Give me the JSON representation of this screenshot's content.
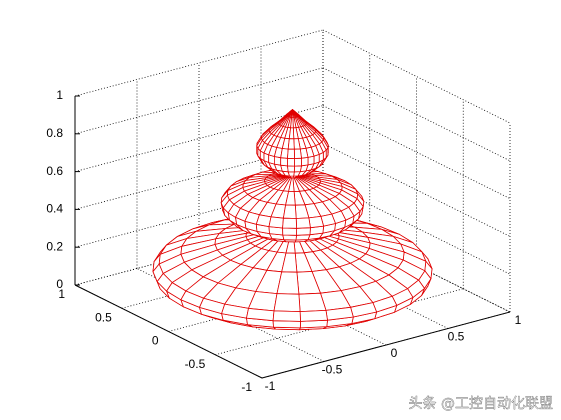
{
  "chart_data": {
    "type": "mesh",
    "color": "#e00000",
    "xlim": [
      -1,
      1
    ],
    "ylim": [
      -1,
      1
    ],
    "zlim": [
      0,
      1
    ],
    "xticks": [
      -1,
      -0.5,
      0,
      0.5,
      1
    ],
    "yticks": [
      -1,
      -0.5,
      0,
      0.5,
      1
    ],
    "zticks": [
      0,
      0.2,
      0.4,
      0.6,
      0.8,
      1
    ],
    "grid": true,
    "profile": {
      "z": [
        0,
        0.03,
        0.07,
        0.11,
        0.15,
        0.19,
        0.24,
        0.29,
        0.33,
        0.36,
        0.39,
        0.43,
        0.47,
        0.51,
        0.55,
        0.59,
        0.62,
        0.65,
        0.69,
        0.73,
        0.77,
        0.81,
        0.85,
        0.89,
        0.93,
        0.97,
        1
      ],
      "r": [
        0,
        0.55,
        0.78,
        0.88,
        0.9,
        0.86,
        0.72,
        0.5,
        0.3,
        0.14,
        0.3,
        0.4,
        0.45,
        0.46,
        0.42,
        0.32,
        0.18,
        0.04,
        0.14,
        0.2,
        0.23,
        0.23,
        0.2,
        0.15,
        0.09,
        0.04,
        0
      ]
    }
  },
  "watermark": "头条 @工控自动化联盟"
}
